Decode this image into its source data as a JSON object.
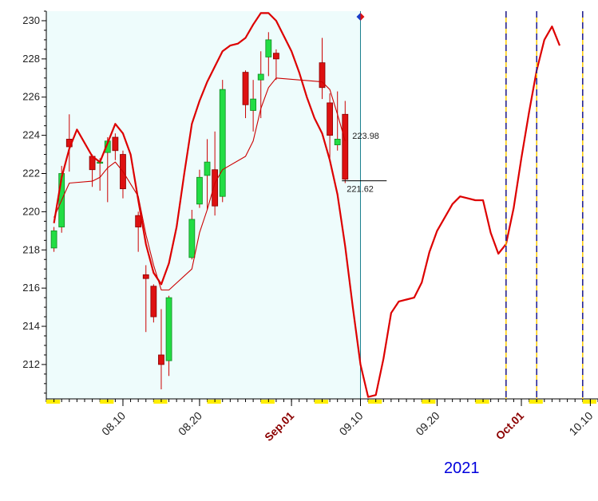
{
  "chart_data": {
    "type": "candlestick",
    "year_label": "2021",
    "ylim": [
      210.2,
      230.5
    ],
    "y_ticks": [
      212,
      214,
      216,
      218,
      220,
      222,
      224,
      226,
      228,
      230
    ],
    "x_ticks": [
      {
        "label": "08.10",
        "date": "2021-08-10",
        "highlight": false
      },
      {
        "label": "08.20",
        "date": "2021-08-20",
        "highlight": false
      },
      {
        "label": "Sep.01",
        "date": "2021-09-01",
        "highlight": true
      },
      {
        "label": "09.10",
        "date": "2021-09-10",
        "highlight": false
      },
      {
        "label": "09.20",
        "date": "2021-09-20",
        "highlight": false
      },
      {
        "label": "Oct.01",
        "date": "2021-10-01",
        "highlight": true
      },
      {
        "label": "10.10",
        "date": "2021-10-10",
        "highlight": false
      }
    ],
    "x_range": [
      "2021-07-31",
      "2021-10-11"
    ],
    "history_end": "2021-09-10",
    "candles": [
      {
        "d": "2021-08-01",
        "o": 218.1,
        "h": 219.2,
        "l": 217.9,
        "c": 219.0
      },
      {
        "d": "2021-08-02",
        "o": 219.2,
        "h": 222.4,
        "l": 218.9,
        "c": 222.0
      },
      {
        "d": "2021-08-03",
        "o": 223.8,
        "h": 225.1,
        "l": 222.1,
        "c": 223.4
      },
      {
        "d": "2021-08-06",
        "o": 222.9,
        "h": 223.0,
        "l": 221.3,
        "c": 222.2
      },
      {
        "d": "2021-08-07",
        "o": 222.6,
        "h": 222.8,
        "l": 221.1,
        "c": 222.6
      },
      {
        "d": "2021-08-08",
        "o": 223.1,
        "h": 223.9,
        "l": 220.5,
        "c": 223.7
      },
      {
        "d": "2021-08-09",
        "o": 223.9,
        "h": 224.1,
        "l": 222.7,
        "c": 223.2
      },
      {
        "d": "2021-08-10",
        "o": 223.0,
        "h": 223.2,
        "l": 220.7,
        "c": 221.2
      },
      {
        "d": "2021-08-12",
        "o": 219.8,
        "h": 220.0,
        "l": 217.9,
        "c": 219.2
      },
      {
        "d": "2021-08-13",
        "o": 216.7,
        "h": 217.2,
        "l": 213.7,
        "c": 216.5
      },
      {
        "d": "2021-08-14",
        "o": 216.1,
        "h": 216.2,
        "l": 214.2,
        "c": 214.5
      },
      {
        "d": "2021-08-15",
        "o": 212.5,
        "h": 214.9,
        "l": 210.7,
        "c": 212.0
      },
      {
        "d": "2021-08-16",
        "o": 212.2,
        "h": 215.6,
        "l": 211.4,
        "c": 215.5
      },
      {
        "d": "2021-08-19",
        "o": 217.6,
        "h": 220.1,
        "l": 217.5,
        "c": 219.6
      },
      {
        "d": "2021-08-20",
        "o": 220.4,
        "h": 222.2,
        "l": 220.2,
        "c": 221.8
      },
      {
        "d": "2021-08-21",
        "o": 221.9,
        "h": 223.8,
        "l": 220.1,
        "c": 222.6
      },
      {
        "d": "2021-08-22",
        "o": 222.2,
        "h": 224.2,
        "l": 219.8,
        "c": 220.3
      },
      {
        "d": "2021-08-23",
        "o": 220.8,
        "h": 226.9,
        "l": 220.5,
        "c": 226.4
      },
      {
        "d": "2021-08-26",
        "o": 227.3,
        "h": 227.4,
        "l": 224.9,
        "c": 225.6
      },
      {
        "d": "2021-08-27",
        "o": 225.3,
        "h": 226.9,
        "l": 224.2,
        "c": 225.9
      },
      {
        "d": "2021-08-28",
        "o": 226.9,
        "h": 228.4,
        "l": 224.9,
        "c": 227.2
      },
      {
        "d": "2021-08-29",
        "o": 228.1,
        "h": 229.4,
        "l": 227.1,
        "c": 229.0
      },
      {
        "d": "2021-08-30",
        "o": 228.3,
        "h": 228.5,
        "l": 226.9,
        "c": 228.0
      },
      {
        "d": "2021-09-05",
        "o": 227.8,
        "h": 229.1,
        "l": 225.9,
        "c": 226.5
      },
      {
        "d": "2021-09-06",
        "o": 225.7,
        "h": 226.2,
        "l": 222.8,
        "c": 224.0
      },
      {
        "d": "2021-09-07",
        "o": 223.5,
        "h": 226.3,
        "l": 223.2,
        "c": 223.8
      },
      {
        "d": "2021-09-08",
        "o": 225.1,
        "h": 225.8,
        "l": 221.5,
        "c": 221.7
      }
    ],
    "annotations": [
      {
        "text": "223.98",
        "date": "2021-09-08",
        "y": 223.98
      },
      {
        "text": "221.62",
        "date": "2021-09-08",
        "y": 221.62
      }
    ],
    "series": [
      {
        "color": "#dd0000",
        "points": [
          [
            "2021-08-01",
            219.4
          ],
          [
            "2021-08-02",
            221.8
          ],
          [
            "2021-08-03",
            223.3
          ],
          [
            "2021-08-04",
            224.3
          ],
          [
            "2021-08-06",
            222.9
          ],
          [
            "2021-08-07",
            222.6
          ],
          [
            "2021-08-08",
            223.6
          ],
          [
            "2021-08-09",
            224.6
          ],
          [
            "2021-08-10",
            224.1
          ],
          [
            "2021-08-11",
            223.0
          ],
          [
            "2021-08-12",
            220.6
          ],
          [
            "2021-08-13",
            218.3
          ],
          [
            "2021-08-14",
            216.8
          ],
          [
            "2021-08-15",
            216.2
          ],
          [
            "2021-08-16",
            217.3
          ],
          [
            "2021-08-17",
            219.2
          ],
          [
            "2021-08-18",
            222.0
          ],
          [
            "2021-08-19",
            224.6
          ],
          [
            "2021-08-20",
            225.8
          ],
          [
            "2021-08-21",
            226.8
          ],
          [
            "2021-08-22",
            227.6
          ],
          [
            "2021-08-23",
            228.4
          ],
          [
            "2021-08-24",
            228.7
          ],
          [
            "2021-08-25",
            228.8
          ],
          [
            "2021-08-26",
            229.1
          ],
          [
            "2021-08-27",
            229.8
          ],
          [
            "2021-08-28",
            230.4
          ],
          [
            "2021-08-29",
            230.4
          ],
          [
            "2021-08-30",
            230.0
          ],
          [
            "2021-08-31",
            229.2
          ],
          [
            "2021-09-01",
            228.4
          ],
          [
            "2021-09-02",
            227.3
          ],
          [
            "2021-09-03",
            226.0
          ],
          [
            "2021-09-04",
            224.9
          ],
          [
            "2021-09-05",
            224.1
          ],
          [
            "2021-09-06",
            222.7
          ],
          [
            "2021-09-07",
            220.9
          ],
          [
            "2021-09-08",
            218.2
          ],
          [
            "2021-09-09",
            215.0
          ],
          [
            "2021-09-10",
            212.0
          ],
          [
            "2021-09-11",
            210.3
          ],
          [
            "2021-09-12",
            210.4
          ],
          [
            "2021-09-13",
            212.3
          ],
          [
            "2021-09-14",
            214.7
          ],
          [
            "2021-09-15",
            215.3
          ],
          [
            "2021-09-16",
            215.4
          ],
          [
            "2021-09-17",
            215.5
          ],
          [
            "2021-09-18",
            216.3
          ],
          [
            "2021-09-19",
            217.9
          ],
          [
            "2021-09-20",
            219.0
          ],
          [
            "2021-09-21",
            219.7
          ],
          [
            "2021-09-22",
            220.4
          ],
          [
            "2021-09-23",
            220.8
          ],
          [
            "2021-09-24",
            220.7
          ],
          [
            "2021-09-25",
            220.6
          ],
          [
            "2021-09-26",
            220.6
          ],
          [
            "2021-09-27",
            218.9
          ],
          [
            "2021-09-28",
            217.8
          ],
          [
            "2021-09-29",
            218.3
          ],
          [
            "2021-09-30",
            220.2
          ],
          [
            "2021-10-01",
            222.8
          ],
          [
            "2021-10-02",
            225.2
          ],
          [
            "2021-10-03",
            227.4
          ],
          [
            "2021-10-04",
            229.0
          ],
          [
            "2021-10-05",
            229.7
          ],
          [
            "2021-10-06",
            228.7
          ]
        ]
      },
      {
        "color": "#cc0000",
        "points": [
          [
            "2021-08-01",
            219.7
          ],
          [
            "2021-08-02",
            220.6
          ],
          [
            "2021-08-03",
            221.5
          ],
          [
            "2021-08-06",
            221.6
          ],
          [
            "2021-08-07",
            221.8
          ],
          [
            "2021-08-08",
            222.3
          ],
          [
            "2021-08-09",
            222.6
          ],
          [
            "2021-08-10",
            222.1
          ],
          [
            "2021-08-12",
            220.8
          ],
          [
            "2021-08-13",
            218.8
          ],
          [
            "2021-08-14",
            217.2
          ],
          [
            "2021-08-15",
            215.9
          ],
          [
            "2021-08-16",
            215.9
          ],
          [
            "2021-08-19",
            217.0
          ],
          [
            "2021-08-20",
            218.9
          ],
          [
            "2021-08-21",
            220.1
          ],
          [
            "2021-08-22",
            221.5
          ],
          [
            "2021-08-23",
            222.2
          ],
          [
            "2021-08-26",
            222.9
          ],
          [
            "2021-08-27",
            223.7
          ],
          [
            "2021-08-28",
            225.4
          ],
          [
            "2021-08-29",
            226.5
          ],
          [
            "2021-08-30",
            227.0
          ],
          [
            "2021-09-05",
            226.8
          ],
          [
            "2021-09-06",
            226.4
          ],
          [
            "2021-09-07",
            225.1
          ],
          [
            "2021-09-08",
            223.7
          ]
        ]
      }
    ],
    "vertical_markers": [
      "2021-09-29",
      "2021-10-03",
      "2021-10-09"
    ]
  }
}
